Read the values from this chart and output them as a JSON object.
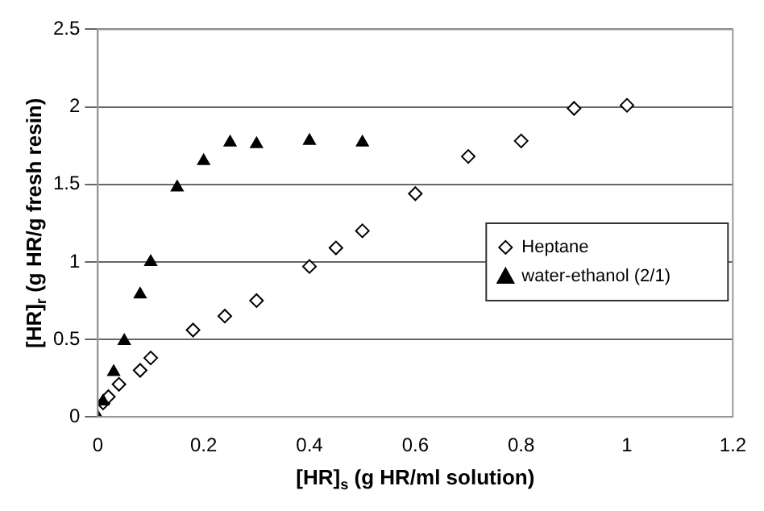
{
  "chart_data": {
    "type": "scatter",
    "xlabel": "[HR]$_{s}$ (g HR/ml solution)",
    "ylabel": "[HR]$_{r}$ (g HR/g fresh resin)",
    "xlim": [
      0,
      1.2
    ],
    "xticks": [
      0,
      0.2,
      0.4,
      0.6,
      0.8,
      1,
      1.2
    ],
    "ylim": [
      0,
      2.5
    ],
    "yticks": [
      0,
      0.5,
      1,
      1.5,
      2,
      2.5
    ],
    "grid": "y",
    "legend": "right",
    "series": [
      {
        "name": "Heptane",
        "color": "#000000",
        "marker": "diamond",
        "x": [
          0.01,
          0.02,
          0.04,
          0.08,
          0.1,
          0.18,
          0.24,
          0.3,
          0.4,
          0.45,
          0.5,
          0.6,
          0.7,
          0.8,
          0.9,
          1.0
        ],
        "values": [
          0.09,
          0.13,
          0.21,
          0.3,
          0.38,
          0.56,
          0.65,
          0.75,
          0.97,
          1.09,
          1.2,
          1.44,
          1.68,
          1.78,
          1.99,
          2.01
        ]
      },
      {
        "name": "water-ethanol (2/1)",
        "color": "#000000",
        "marker": "triangle",
        "x": [
          0,
          0.01,
          0.03,
          0.05,
          0.08,
          0.1,
          0.15,
          0.2,
          0.25,
          0.3,
          0.4,
          0.5
        ],
        "values": [
          0,
          0.1,
          0.29,
          0.49,
          0.79,
          1.0,
          1.48,
          1.65,
          1.77,
          1.76,
          1.78,
          1.77
        ]
      }
    ]
  }
}
